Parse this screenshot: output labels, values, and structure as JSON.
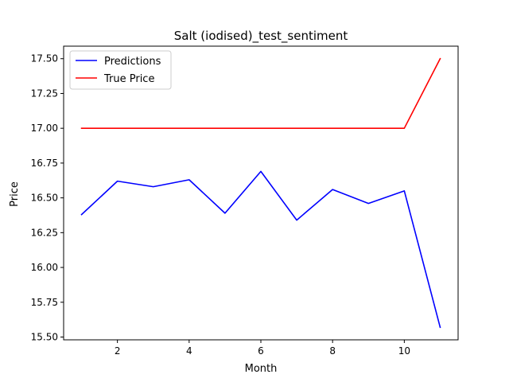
{
  "chart_data": {
    "type": "line",
    "title": "Salt (iodised)_test_sentiment",
    "xlabel": "Month",
    "ylabel": "Price",
    "xlim": [
      0.5,
      11.5
    ],
    "ylim": [
      15.48,
      17.59
    ],
    "x_ticks": [
      2,
      4,
      6,
      8,
      10
    ],
    "x_tick_labels": [
      "2",
      "4",
      "6",
      "8",
      "10"
    ],
    "y_ticks": [
      15.5,
      15.75,
      16.0,
      16.25,
      16.5,
      16.75,
      17.0,
      17.25,
      17.5
    ],
    "y_tick_labels": [
      "15.50",
      "15.75",
      "16.00",
      "16.25",
      "16.50",
      "16.75",
      "17.00",
      "17.25",
      "17.50"
    ],
    "grid": false,
    "legend_position": "top-left",
    "x": [
      1,
      2,
      3,
      4,
      5,
      6,
      7,
      8,
      9,
      10,
      11
    ],
    "series": [
      {
        "name": "Predictions",
        "color": "#0000ff",
        "values": [
          16.38,
          16.62,
          16.58,
          16.63,
          16.39,
          16.69,
          16.34,
          16.56,
          16.46,
          16.55,
          15.57
        ]
      },
      {
        "name": "True Price",
        "color": "#ff0000",
        "values": [
          17.0,
          17.0,
          17.0,
          17.0,
          17.0,
          17.0,
          17.0,
          17.0,
          17.0,
          17.0,
          17.5
        ]
      }
    ]
  }
}
